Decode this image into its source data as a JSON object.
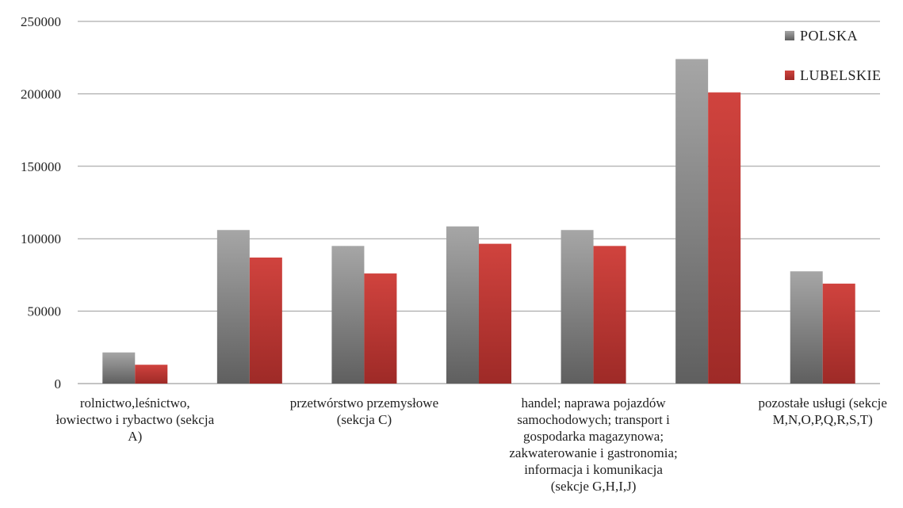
{
  "chart_data": {
    "type": "bar",
    "categories": [
      [
        "rolnictwo,leśnictwo,",
        "łowiectwo i rybactwo (sekcja",
        "A)"
      ],
      [
        ""
      ],
      [
        "przetwórstwo przemysłowe",
        "(sekcja C)"
      ],
      [
        ""
      ],
      [
        "handel; naprawa pojazdów",
        "samochodowych; transport i",
        "gospodarka magazynowa;",
        "zakwaterowanie i gastronomia;",
        "informacja i komunikacja",
        "(sekcje G,H,I,J)"
      ],
      [
        ""
      ],
      [
        "pozostałe usługi (sekcje",
        "M,N,O,P,Q,R,S,T)"
      ]
    ],
    "series": [
      {
        "name": "POLSKA",
        "color": "#8c8c8c",
        "values": [
          21500,
          106000,
          95000,
          108500,
          106000,
          224000,
          77500
        ]
      },
      {
        "name": "LUBELSKIE",
        "color": "#c0403c",
        "values": [
          13000,
          87000,
          76000,
          96500,
          95000,
          201000,
          69000
        ]
      }
    ],
    "yticks": [
      "0",
      "50000",
      "100000",
      "150000",
      "200000",
      "250000"
    ],
    "ylim": [
      0,
      250000
    ],
    "grid": true,
    "legend": "top-right"
  }
}
